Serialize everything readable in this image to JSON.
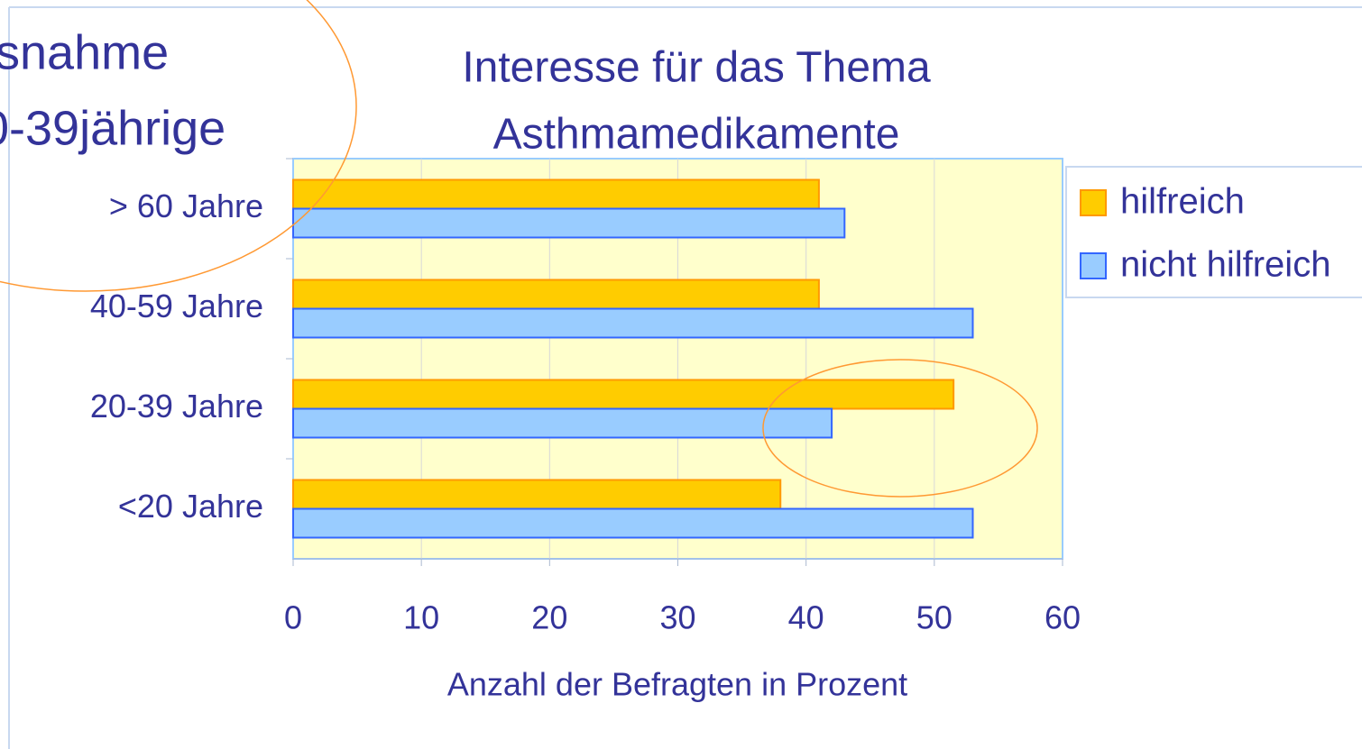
{
  "chart_data": {
    "type": "hbar",
    "title": [
      "Interesse für das Thema",
      "Asthmamedikamente"
    ],
    "annotation": [
      "snahme",
      "0-39jährige"
    ],
    "x_label": "Anzahl der Befragten in Prozent",
    "categories": [
      "> 60 Jahre",
      "40-59 Jahre",
      "20-39 Jahre",
      "<20 Jahre"
    ],
    "series": [
      {
        "name": "hilfreich",
        "color": "#ffcc00",
        "stroke": "#ff9900",
        "values": [
          41,
          41,
          51.5,
          38
        ]
      },
      {
        "name": "nicht hilfreich",
        "color": "#99ccff",
        "stroke": "#3366ff",
        "values": [
          43,
          53,
          42,
          53
        ]
      }
    ],
    "xlim": [
      0,
      60
    ],
    "xticks": [
      0,
      10,
      20,
      30,
      40,
      50,
      60
    ],
    "grid": true,
    "legend": "right"
  }
}
